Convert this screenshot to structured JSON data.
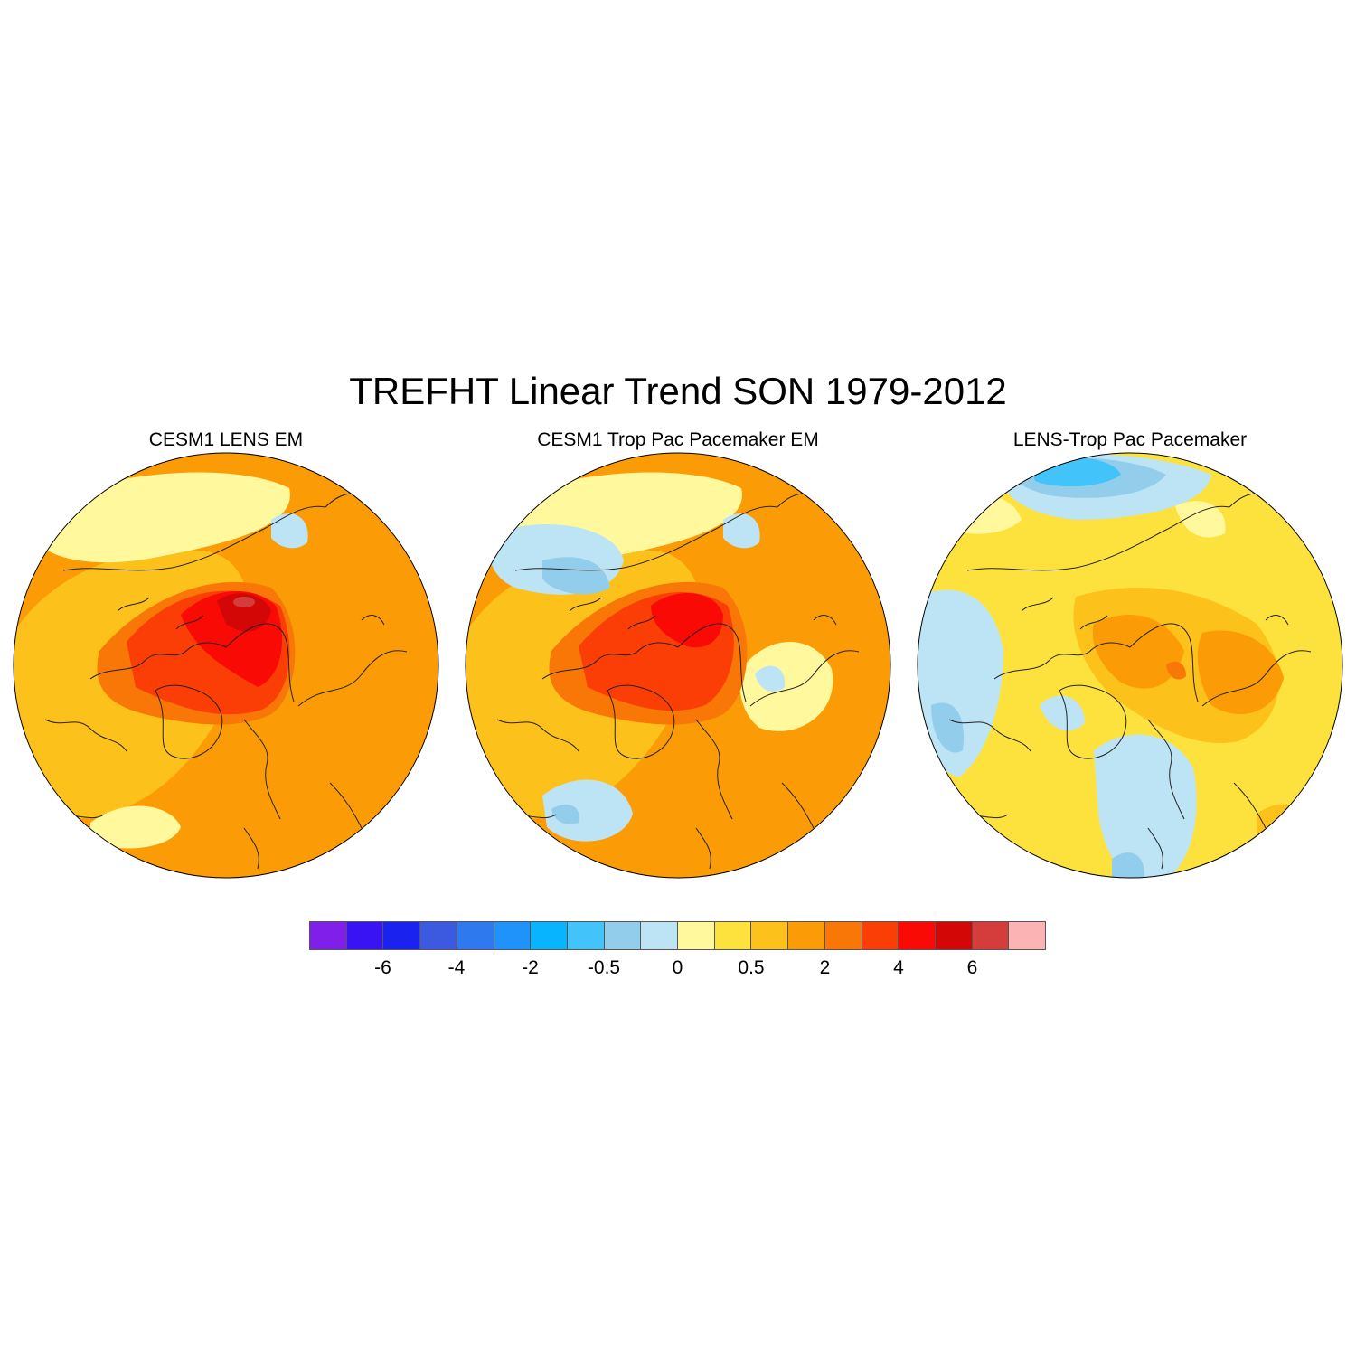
{
  "title": "TREFHT Linear Trend SON 1979-2012",
  "panels": [
    {
      "title": "CESM1 LENS EM"
    },
    {
      "title": "CESM1 Trop Pac Pacemaker EM"
    },
    {
      "title": "LENS-Trop Pac Pacemaker"
    }
  ],
  "colorbar": {
    "colors": [
      "#7f1fe9",
      "#3a13f5",
      "#1a22f0",
      "#3c5ae0",
      "#2e79ee",
      "#2093fb",
      "#08b4fd",
      "#42c3f9",
      "#93cdec",
      "#bde4f5",
      "#fff89c",
      "#fde23e",
      "#fcc11b",
      "#fb9b06",
      "#f97707",
      "#fb3e05",
      "#f90a05",
      "#d20706",
      "#d53c3c",
      "#fbb3b4"
    ],
    "labels": [
      {
        "text": "-6",
        "box_edge": 2
      },
      {
        "text": "-4",
        "box_edge": 4
      },
      {
        "text": "-2",
        "box_edge": 6
      },
      {
        "text": "-0.5",
        "box_edge": 8
      },
      {
        "text": "0",
        "box_edge": 10
      },
      {
        "text": "0.5",
        "box_edge": 12
      },
      {
        "text": "2",
        "box_edge": 14
      },
      {
        "text": "4",
        "box_edge": 16
      },
      {
        "text": "6",
        "box_edge": 18
      }
    ]
  }
}
